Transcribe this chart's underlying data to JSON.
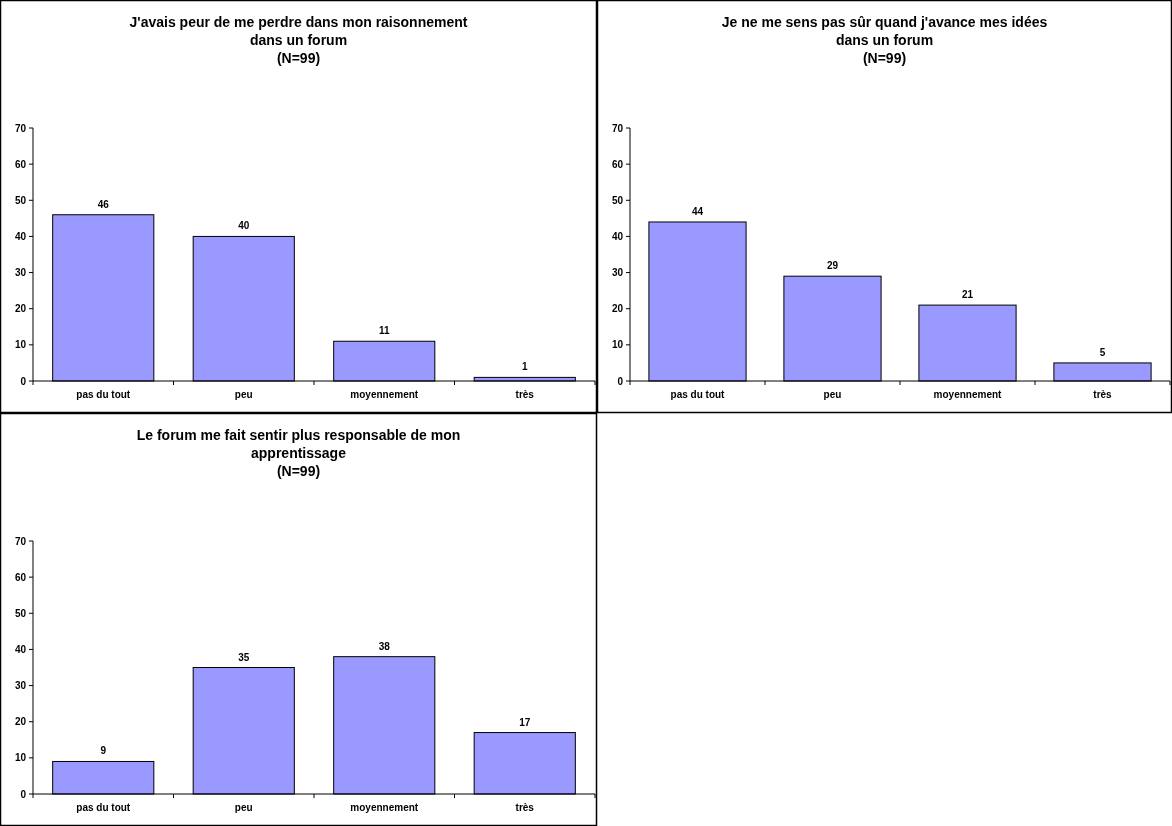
{
  "chart_data": [
    {
      "type": "bar",
      "title": "J'avais peur de me perdre dans mon raisonnement\ndans un forum\n(N=99)",
      "categories": [
        "pas du tout",
        "peu",
        "moyennement",
        "très"
      ],
      "values": [
        46,
        40,
        11,
        1
      ],
      "color": "#9999ff",
      "ylim": [
        0,
        70
      ],
      "yticks": [
        0,
        10,
        20,
        30,
        40,
        50,
        60,
        70
      ],
      "data_labels": true,
      "grid": false
    },
    {
      "type": "bar",
      "title": "Je ne me sens pas sûr quand j'avance mes idées\ndans un forum\n(N=99)",
      "categories": [
        "pas du tout",
        "peu",
        "moyennement",
        "très"
      ],
      "values": [
        44,
        29,
        21,
        5
      ],
      "color": "#9999ff",
      "ylim": [
        0,
        70
      ],
      "yticks": [
        0,
        10,
        20,
        30,
        40,
        50,
        60,
        70
      ],
      "data_labels": true,
      "grid": false
    },
    {
      "type": "bar",
      "title": "Le forum me fait sentir plus responsable de mon\napprentissage\n(N=99)",
      "categories": [
        "pas du tout",
        "peu",
        "moyennement",
        "très"
      ],
      "values": [
        9,
        35,
        38,
        17
      ],
      "color": "#9999ff",
      "ylim": [
        0,
        70
      ],
      "yticks": [
        0,
        10,
        20,
        30,
        40,
        50,
        60,
        70
      ],
      "data_labels": true,
      "grid": false
    }
  ]
}
